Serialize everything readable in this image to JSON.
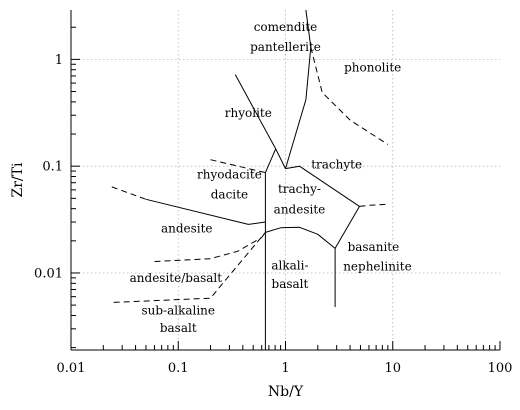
{
  "chart_data": {
    "type": "diagram",
    "xlabel": "Nb/Y",
    "ylabel": "Zr/Ti",
    "x_scale": "log",
    "y_scale": "log",
    "xlim": [
      0.01,
      100
    ],
    "ylim": [
      0.0019,
      2.9
    ],
    "x_ticks": [
      {
        "value": 0.01,
        "label": "0.01"
      },
      {
        "value": 0.1,
        "label": "0.1"
      },
      {
        "value": 1,
        "label": "1"
      },
      {
        "value": 10,
        "label": "10"
      },
      {
        "value": 100,
        "label": "100"
      }
    ],
    "y_ticks": [
      {
        "value": 0.01,
        "label": "0.01"
      },
      {
        "value": 0.1,
        "label": "0.1"
      },
      {
        "value": 1,
        "label": "1"
      }
    ],
    "grid": true,
    "field_labels": [
      {
        "text": "comendite",
        "x": 1.0,
        "y": 1.85
      },
      {
        "text": "pantellerite",
        "x": 1.0,
        "y": 1.2
      },
      {
        "text": "phonolite",
        "x": 6.5,
        "y": 0.77
      },
      {
        "text": "rhyolite",
        "x": 0.45,
        "y": 0.29
      },
      {
        "text": "trachyte",
        "x": 3.0,
        "y": 0.095
      },
      {
        "text": "rhyodacite",
        "x": 0.3,
        "y": 0.077
      },
      {
        "text": "dacite",
        "x": 0.3,
        "y": 0.05
      },
      {
        "text": "trachy-",
        "x": 1.35,
        "y": 0.056
      },
      {
        "text": "andesite",
        "x": 1.35,
        "y": 0.036
      },
      {
        "text": "andesite",
        "x": 0.12,
        "y": 0.024
      },
      {
        "text": "basanite",
        "x": 6.6,
        "y": 0.016
      },
      {
        "text": "nephelinite",
        "x": 7.2,
        "y": 0.0105
      },
      {
        "text": "alkali-",
        "x": 1.1,
        "y": 0.0108
      },
      {
        "text": "basalt",
        "x": 1.1,
        "y": 0.0072
      },
      {
        "text": "andesite/basalt",
        "x": 0.095,
        "y": 0.0082
      },
      {
        "text": "sub-alkaline",
        "x": 0.1,
        "y": 0.0041
      },
      {
        "text": "basalt",
        "x": 0.1,
        "y": 0.0028
      }
    ],
    "boundaries": [
      {
        "style": "solid",
        "points": [
          [
            1.55,
            2.9
          ],
          [
            1.72,
            1.3
          ],
          [
            1.55,
            0.42
          ],
          [
            1.0,
            0.095
          ]
        ]
      },
      {
        "style": "solid",
        "points": [
          [
            0.34,
            0.72
          ],
          [
            0.81,
            0.145
          ],
          [
            1.0,
            0.095
          ]
        ]
      },
      {
        "style": "solid",
        "points": [
          [
            1.0,
            0.095
          ],
          [
            1.35,
            0.1
          ],
          [
            4.9,
            0.042
          ]
        ]
      },
      {
        "style": "solid",
        "points": [
          [
            0.81,
            0.145
          ],
          [
            0.65,
            0.087
          ]
        ]
      },
      {
        "style": "solid",
        "points": [
          [
            0.65,
            0.087
          ],
          [
            0.65,
            0.0019
          ]
        ]
      },
      {
        "style": "solid",
        "points": [
          [
            0.05,
            0.049
          ],
          [
            0.45,
            0.0285
          ],
          [
            0.65,
            0.03
          ]
        ]
      },
      {
        "style": "solid",
        "points": [
          [
            0.65,
            0.024
          ],
          [
            0.9,
            0.0265
          ],
          [
            1.35,
            0.0268
          ],
          [
            2.0,
            0.023
          ],
          [
            2.9,
            0.017
          ],
          [
            4.9,
            0.042
          ]
        ]
      },
      {
        "style": "solid",
        "points": [
          [
            2.9,
            0.017
          ],
          [
            2.9,
            0.0048
          ]
        ]
      },
      {
        "style": "dashed",
        "points": [
          [
            1.72,
            1.3
          ],
          [
            2.2,
            0.49
          ],
          [
            4.0,
            0.27
          ],
          [
            9.0,
            0.16
          ]
        ]
      },
      {
        "style": "dashed",
        "points": [
          [
            0.2,
            0.115
          ],
          [
            0.65,
            0.087
          ]
        ]
      },
      {
        "style": "dashed",
        "points": [
          [
            0.024,
            0.064
          ],
          [
            0.05,
            0.049
          ]
        ]
      },
      {
        "style": "dashed",
        "points": [
          [
            4.9,
            0.042
          ],
          [
            6.0,
            0.043
          ],
          [
            9.0,
            0.044
          ]
        ]
      },
      {
        "style": "dashed",
        "points": [
          [
            0.06,
            0.0128
          ],
          [
            0.2,
            0.0136
          ],
          [
            0.36,
            0.016
          ],
          [
            0.6,
            0.0215
          ],
          [
            0.65,
            0.024
          ]
        ]
      },
      {
        "style": "dashed",
        "points": [
          [
            0.025,
            0.0053
          ],
          [
            0.2,
            0.0058
          ],
          [
            0.3,
            0.0095
          ],
          [
            0.65,
            0.024
          ]
        ]
      }
    ]
  }
}
